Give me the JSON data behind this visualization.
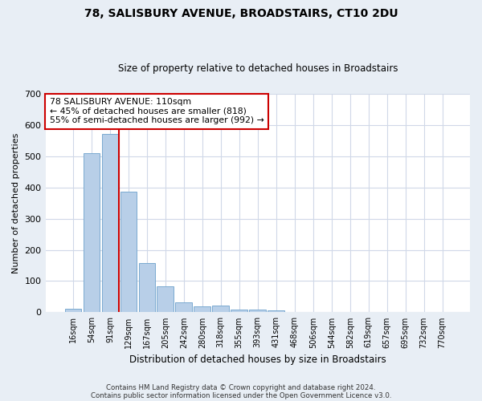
{
  "title1": "78, SALISBURY AVENUE, BROADSTAIRS, CT10 2DU",
  "title2": "Size of property relative to detached houses in Broadstairs",
  "xlabel": "Distribution of detached houses by size in Broadstairs",
  "ylabel": "Number of detached properties",
  "bar_labels": [
    "16sqm",
    "54sqm",
    "91sqm",
    "129sqm",
    "167sqm",
    "205sqm",
    "242sqm",
    "280sqm",
    "318sqm",
    "355sqm",
    "393sqm",
    "431sqm",
    "468sqm",
    "506sqm",
    "544sqm",
    "582sqm",
    "619sqm",
    "657sqm",
    "695sqm",
    "732sqm",
    "770sqm"
  ],
  "bar_values": [
    12,
    510,
    570,
    385,
    158,
    82,
    32,
    20,
    22,
    10,
    9,
    5,
    2,
    2,
    1,
    1,
    1,
    0,
    0,
    0,
    0
  ],
  "bar_color": "#b8cfe8",
  "bar_edgecolor": "#7aaad0",
  "vline_color": "#cc0000",
  "annotation_text": "78 SALISBURY AVENUE: 110sqm\n← 45% of detached houses are smaller (818)\n55% of semi-detached houses are larger (992) →",
  "annotation_box_color": "#ffffff",
  "annotation_box_edgecolor": "#cc0000",
  "ylim": [
    0,
    700
  ],
  "yticks": [
    0,
    100,
    200,
    300,
    400,
    500,
    600,
    700
  ],
  "footer1": "Contains HM Land Registry data © Crown copyright and database right 2024.",
  "footer2": "Contains public sector information licensed under the Open Government Licence v3.0.",
  "fig_bg_color": "#e8eef5",
  "plot_bg_color": "#ffffff",
  "grid_color": "#d0d8e8"
}
